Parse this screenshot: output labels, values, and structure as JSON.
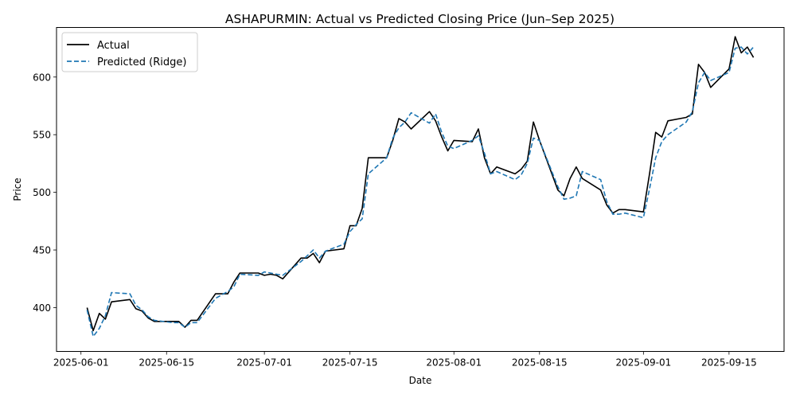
{
  "chart_data": {
    "type": "line",
    "title": "ASHAPURMIN: Actual vs Predicted Closing Price (Jun–Sep 2025)",
    "xlabel": "Date",
    "ylabel": "Price",
    "xlim": [
      "2025-05-28",
      "2025-09-24"
    ],
    "ylim": [
      362,
      643
    ],
    "x_ticks": [
      {
        "date": "2025-06-01",
        "label": "2025-06-01"
      },
      {
        "date": "2025-06-15",
        "label": "2025-06-15"
      },
      {
        "date": "2025-07-01",
        "label": "2025-07-01"
      },
      {
        "date": "2025-07-15",
        "label": "2025-07-15"
      },
      {
        "date": "2025-08-01",
        "label": "2025-08-01"
      },
      {
        "date": "2025-08-15",
        "label": "2025-08-15"
      },
      {
        "date": "2025-09-01",
        "label": "2025-09-01"
      },
      {
        "date": "2025-09-15",
        "label": "2025-09-15"
      }
    ],
    "y_ticks": [
      400,
      450,
      500,
      550,
      600
    ],
    "legend_position": "top-left",
    "grid": false,
    "series": [
      {
        "name": "Actual",
        "color": "#000000",
        "style": "solid",
        "points": [
          [
            "2025-06-02",
            400
          ],
          [
            "2025-06-03",
            380
          ],
          [
            "2025-06-04",
            395
          ],
          [
            "2025-06-05",
            390
          ],
          [
            "2025-06-06",
            405
          ],
          [
            "2025-06-09",
            407
          ],
          [
            "2025-06-10",
            399
          ],
          [
            "2025-06-11",
            397
          ],
          [
            "2025-06-12",
            391
          ],
          [
            "2025-06-13",
            388
          ],
          [
            "2025-06-16",
            388
          ],
          [
            "2025-06-17",
            388
          ],
          [
            "2025-06-18",
            383
          ],
          [
            "2025-06-19",
            389
          ],
          [
            "2025-06-20",
            389
          ],
          [
            "2025-06-23",
            412
          ],
          [
            "2025-06-24",
            412
          ],
          [
            "2025-06-25",
            412
          ],
          [
            "2025-06-26",
            422
          ],
          [
            "2025-06-27",
            430
          ],
          [
            "2025-06-30",
            430
          ],
          [
            "2025-07-01",
            428
          ],
          [
            "2025-07-02",
            429
          ],
          [
            "2025-07-03",
            428
          ],
          [
            "2025-07-04",
            425
          ],
          [
            "2025-07-07",
            443
          ],
          [
            "2025-07-08",
            443
          ],
          [
            "2025-07-09",
            447
          ],
          [
            "2025-07-10",
            439
          ],
          [
            "2025-07-11",
            449
          ],
          [
            "2025-07-14",
            451
          ],
          [
            "2025-07-15",
            471
          ],
          [
            "2025-07-16",
            471
          ],
          [
            "2025-07-17",
            486
          ],
          [
            "2025-07-18",
            530
          ],
          [
            "2025-07-21",
            530
          ],
          [
            "2025-07-22",
            545
          ],
          [
            "2025-07-23",
            564
          ],
          [
            "2025-07-24",
            561
          ],
          [
            "2025-07-25",
            555
          ],
          [
            "2025-07-28",
            570
          ],
          [
            "2025-07-29",
            562
          ],
          [
            "2025-07-30",
            548
          ],
          [
            "2025-07-31",
            536
          ],
          [
            "2025-08-01",
            545
          ],
          [
            "2025-08-04",
            544
          ],
          [
            "2025-08-05",
            555
          ],
          [
            "2025-08-06",
            530
          ],
          [
            "2025-08-07",
            516
          ],
          [
            "2025-08-08",
            522
          ],
          [
            "2025-08-11",
            516
          ],
          [
            "2025-08-12",
            520
          ],
          [
            "2025-08-13",
            527
          ],
          [
            "2025-08-14",
            561
          ],
          [
            "2025-08-15",
            545
          ],
          [
            "2025-08-18",
            502
          ],
          [
            "2025-08-19",
            497
          ],
          [
            "2025-08-20",
            512
          ],
          [
            "2025-08-21",
            522
          ],
          [
            "2025-08-22",
            512
          ],
          [
            "2025-08-25",
            502
          ],
          [
            "2025-08-26",
            489
          ],
          [
            "2025-08-27",
            482
          ],
          [
            "2025-08-28",
            485
          ],
          [
            "2025-08-29",
            485
          ],
          [
            "2025-09-01",
            483
          ],
          [
            "2025-09-02",
            516
          ],
          [
            "2025-09-03",
            552
          ],
          [
            "2025-09-04",
            548
          ],
          [
            "2025-09-05",
            562
          ],
          [
            "2025-09-08",
            565
          ],
          [
            "2025-09-09",
            568
          ],
          [
            "2025-09-10",
            611
          ],
          [
            "2025-09-11",
            604
          ],
          [
            "2025-09-12",
            591
          ],
          [
            "2025-09-15",
            607
          ],
          [
            "2025-09-16",
            635
          ],
          [
            "2025-09-17",
            621
          ],
          [
            "2025-09-18",
            626
          ],
          [
            "2025-09-19",
            617
          ]
        ]
      },
      {
        "name": "Predicted (Ridge)",
        "color": "#1f77b4",
        "style": "dashed",
        "points": [
          [
            "2025-06-02",
            398
          ],
          [
            "2025-06-03",
            375
          ],
          [
            "2025-06-04",
            382
          ],
          [
            "2025-06-05",
            393
          ],
          [
            "2025-06-06",
            413
          ],
          [
            "2025-06-09",
            412
          ],
          [
            "2025-06-10",
            402
          ],
          [
            "2025-06-11",
            398
          ],
          [
            "2025-06-12",
            392
          ],
          [
            "2025-06-13",
            389
          ],
          [
            "2025-06-16",
            387
          ],
          [
            "2025-06-17",
            387
          ],
          [
            "2025-06-18",
            383
          ],
          [
            "2025-06-19",
            387
          ],
          [
            "2025-06-20",
            387
          ],
          [
            "2025-06-23",
            408
          ],
          [
            "2025-06-24",
            411
          ],
          [
            "2025-06-25",
            414
          ],
          [
            "2025-06-26",
            418
          ],
          [
            "2025-06-27",
            429
          ],
          [
            "2025-06-30",
            428
          ],
          [
            "2025-07-01",
            431
          ],
          [
            "2025-07-02",
            430
          ],
          [
            "2025-07-03",
            429
          ],
          [
            "2025-07-04",
            428
          ],
          [
            "2025-07-07",
            440
          ],
          [
            "2025-07-08",
            445
          ],
          [
            "2025-07-09",
            450
          ],
          [
            "2025-07-10",
            443
          ],
          [
            "2025-07-11",
            449
          ],
          [
            "2025-07-14",
            455
          ],
          [
            "2025-07-15",
            466
          ],
          [
            "2025-07-16",
            472
          ],
          [
            "2025-07-17",
            477
          ],
          [
            "2025-07-18",
            516
          ],
          [
            "2025-07-21",
            530
          ],
          [
            "2025-07-22",
            547
          ],
          [
            "2025-07-23",
            556
          ],
          [
            "2025-07-24",
            561
          ],
          [
            "2025-07-25",
            569
          ],
          [
            "2025-07-28",
            560
          ],
          [
            "2025-07-29",
            568
          ],
          [
            "2025-07-30",
            552
          ],
          [
            "2025-07-31",
            540
          ],
          [
            "2025-08-01",
            538
          ],
          [
            "2025-08-04",
            545
          ],
          [
            "2025-08-05",
            549
          ],
          [
            "2025-08-06",
            534
          ],
          [
            "2025-08-07",
            516
          ],
          [
            "2025-08-08",
            518
          ],
          [
            "2025-08-11",
            511
          ],
          [
            "2025-08-12",
            515
          ],
          [
            "2025-08-13",
            525
          ],
          [
            "2025-08-14",
            547
          ],
          [
            "2025-08-15",
            545
          ],
          [
            "2025-08-18",
            505
          ],
          [
            "2025-08-19",
            494
          ],
          [
            "2025-08-20",
            495
          ],
          [
            "2025-08-21",
            497
          ],
          [
            "2025-08-22",
            518
          ],
          [
            "2025-08-25",
            511
          ],
          [
            "2025-08-26",
            492
          ],
          [
            "2025-08-27",
            481
          ],
          [
            "2025-08-28",
            481
          ],
          [
            "2025-08-29",
            482
          ],
          [
            "2025-09-01",
            478
          ],
          [
            "2025-09-02",
            503
          ],
          [
            "2025-09-03",
            530
          ],
          [
            "2025-09-04",
            544
          ],
          [
            "2025-09-05",
            550
          ],
          [
            "2025-09-08",
            561
          ],
          [
            "2025-09-09",
            570
          ],
          [
            "2025-09-10",
            595
          ],
          [
            "2025-09-11",
            604
          ],
          [
            "2025-09-12",
            597
          ],
          [
            "2025-09-15",
            604
          ],
          [
            "2025-09-16",
            625
          ],
          [
            "2025-09-17",
            626
          ],
          [
            "2025-09-18",
            620
          ],
          [
            "2025-09-19",
            626
          ]
        ]
      }
    ]
  }
}
